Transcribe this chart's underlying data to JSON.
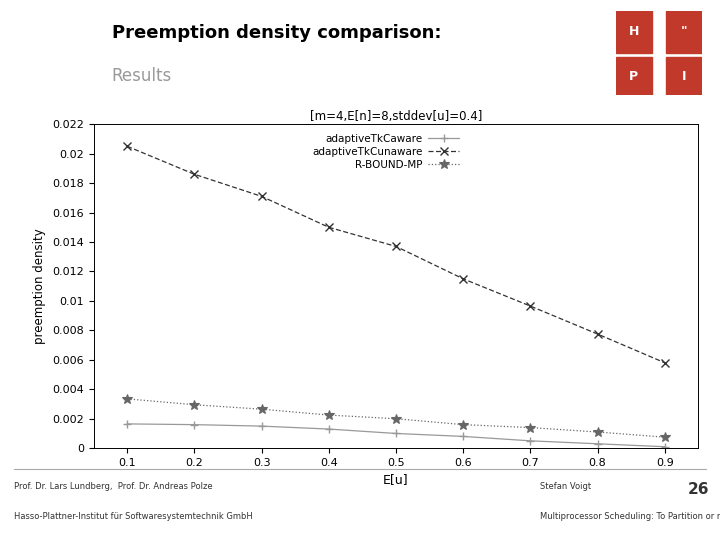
{
  "title_main": "Preemption density comparison:",
  "title_sub": "Results",
  "chart_title": "[m=4,E[n]=8,stddev[u]=0.4]",
  "xlabel": "E[u]",
  "ylabel": "preemption density",
  "x_values": [
    0.1,
    0.2,
    0.3,
    0.4,
    0.5,
    0.6,
    0.7,
    0.8,
    0.9
  ],
  "adaptive_Tk_Caware": [
    0.00165,
    0.0016,
    0.0015,
    0.0013,
    0.001,
    0.0008,
    0.0005,
    0.0003,
    0.0001
  ],
  "adaptive_Tk_Cunaware": [
    0.0205,
    0.0186,
    0.0171,
    0.015,
    0.0137,
    0.0115,
    0.00965,
    0.00775,
    0.0058
  ],
  "R_BOUND_MP": [
    0.00335,
    0.00295,
    0.00265,
    0.00225,
    0.002,
    0.0016,
    0.0014,
    0.0011,
    0.00075
  ],
  "ylim": [
    0,
    0.022
  ],
  "xlim": [
    0.05,
    0.95
  ],
  "ytick_vals": [
    0,
    0.002,
    0.004,
    0.006,
    0.008,
    0.01,
    0.012,
    0.014,
    0.016,
    0.018,
    0.02,
    0.022
  ],
  "ytick_labels": [
    "0",
    "0.002",
    "0.004",
    "0.006",
    "0.008",
    "0.01",
    "0.012",
    "0.014",
    "0.016",
    "0.018",
    "0.02",
    "0.022"
  ],
  "xticks": [
    0.1,
    0.2,
    0.3,
    0.4,
    0.5,
    0.6,
    0.7,
    0.8,
    0.9
  ],
  "bg_color": "#ffffff",
  "line_color_aware": "#999999",
  "line_color_unaware": "#333333",
  "line_color_rbound": "#666666",
  "footer_left1": "Prof. Dr. Lars Lundberg,  Prof. Dr. Andreas Polze",
  "footer_left2": "Hasso-Plattner-Institut für Softwaresystemtechnik GmbH",
  "footer_right1": "Stefan Voigt",
  "footer_right2": "Multiprocessor Scheduling: To Partition or not to Partition",
  "footer_page": "26",
  "header_bar_color": "#999999",
  "header_title_color": "#000000",
  "header_sub_color": "#999999",
  "hpi_red": "#c0392b"
}
